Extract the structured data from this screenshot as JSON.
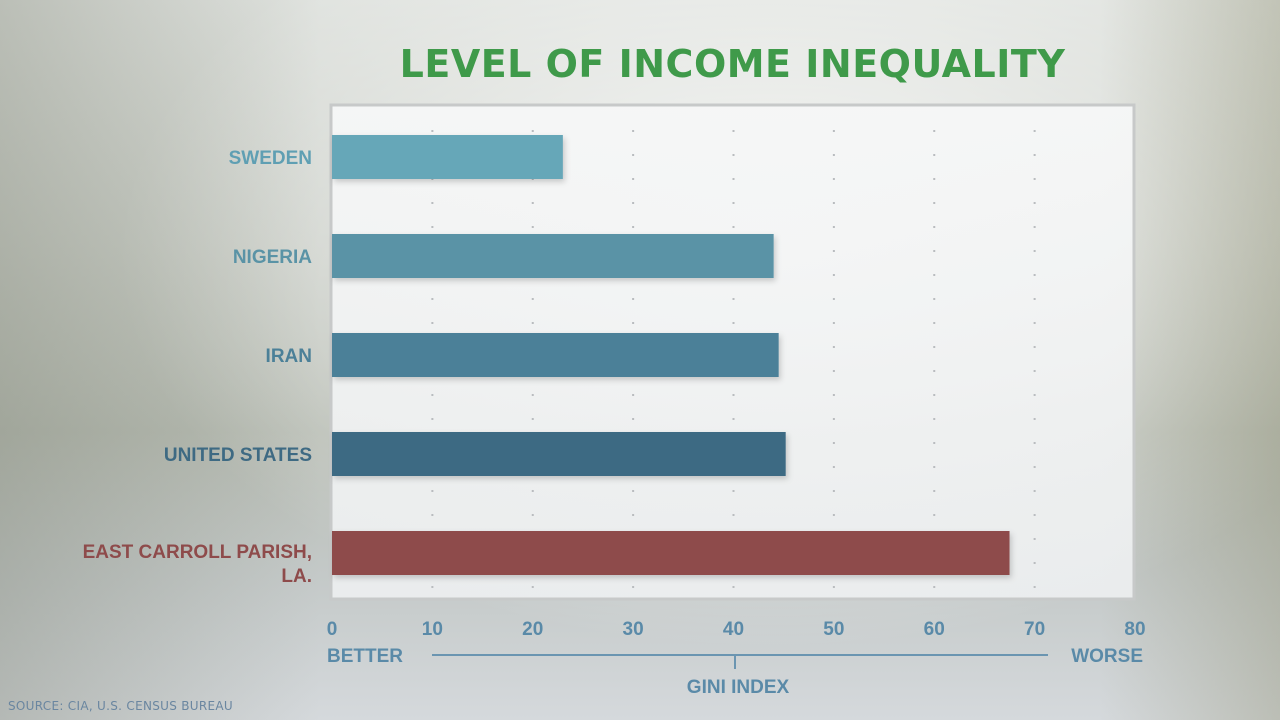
{
  "chart_data": {
    "type": "bar",
    "orientation": "horizontal",
    "title": "LEVEL OF INCOME INEQUALITY",
    "categories": [
      "SWEDEN",
      "NIGERIA",
      "IRAN",
      "UNITED STATES",
      "EAST CARROLL PARISH, LA."
    ],
    "category_lines": [
      [
        "SWEDEN"
      ],
      [
        "NIGERIA"
      ],
      [
        "IRAN"
      ],
      [
        "UNITED STATES"
      ],
      [
        "EAST CARROLL PARISH,",
        "LA."
      ]
    ],
    "values": [
      23,
      44,
      44.5,
      45.2,
      67.5
    ],
    "xlim": [
      0,
      80
    ],
    "xticks": [
      "0",
      "10",
      "20",
      "30",
      "40",
      "50",
      "60",
      "70",
      "80"
    ],
    "xlabel": "GINI INDEX",
    "scale_left_label": "BETTER",
    "scale_right_label": "WORSE",
    "grid": true,
    "colors": [
      "#66a7b8",
      "#5a93a6",
      "#4b8098",
      "#3e6a83",
      "#8e4b4b"
    ],
    "label_colors": [
      "#5f9fb3",
      "#5a93a6",
      "#4b8098",
      "#3e6a83",
      "#8e4b4b"
    ],
    "axis_color": "#5a8aa8"
  },
  "source": "SOURCE: CIA, U.S. CENSUS BUREAU"
}
